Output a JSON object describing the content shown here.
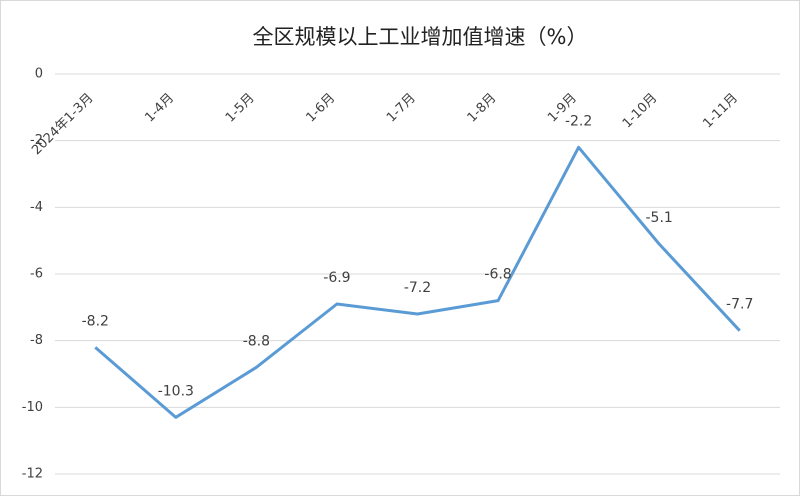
{
  "chart_data": {
    "type": "line",
    "title": "全区规模以上工业增加值增速（%）",
    "categories": [
      "2024年1-3月",
      "1-4月",
      "1-5月",
      "1-6月",
      "1-7月",
      "1-8月",
      "1-9月",
      "1-10月",
      "1-11月"
    ],
    "series": [
      {
        "name": "增速",
        "color": "#5b9bd5",
        "values": [
          -8.2,
          -10.3,
          -8.8,
          -6.9,
          -7.2,
          -6.8,
          -2.2,
          -5.1,
          -7.7
        ]
      }
    ],
    "ylim": [
      -12,
      0
    ],
    "yticks": [
      0,
      -2,
      -4,
      -6,
      -8,
      -10,
      -12
    ],
    "grid": true
  }
}
